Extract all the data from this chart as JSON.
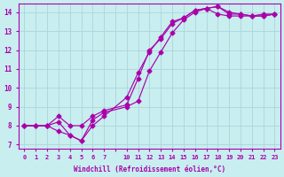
{
  "xlabel": "Windchill (Refroidissement éolien,°C)",
  "bg_color": "#c8eef0",
  "grid_color": "#b0d8dc",
  "line_color": "#aa00aa",
  "ylim": [
    6.8,
    14.45
  ],
  "yticks": [
    7,
    8,
    9,
    10,
    11,
    12,
    13,
    14
  ],
  "xtick_labels": [
    "0",
    "1",
    "2",
    "3",
    "4",
    "5",
    "6",
    "7",
    "",
    "10",
    "11",
    "12",
    "13",
    "14",
    "15",
    "16",
    "17",
    "18",
    "19",
    "20",
    "21",
    "22",
    "23"
  ],
  "n_xticks": 23,
  "line1_xi": [
    0,
    1,
    2,
    3,
    4,
    5,
    6,
    7,
    9,
    10,
    11,
    12,
    13,
    14,
    15,
    16,
    17,
    18,
    19,
    20,
    21,
    22
  ],
  "line1_y": [
    8.0,
    8.0,
    8.0,
    7.7,
    7.5,
    7.2,
    8.0,
    8.5,
    9.5,
    10.8,
    11.9,
    12.7,
    13.5,
    13.7,
    14.1,
    14.2,
    13.9,
    13.8,
    13.8,
    13.8,
    13.9,
    13.9
  ],
  "line2_xi": [
    0,
    1,
    2,
    3,
    4,
    5,
    6,
    7,
    9,
    10,
    11,
    12,
    13,
    14,
    15,
    16,
    17,
    18,
    19,
    20,
    21,
    22
  ],
  "line2_y": [
    8.0,
    8.0,
    8.0,
    8.2,
    7.5,
    7.2,
    8.3,
    8.7,
    9.0,
    9.3,
    10.9,
    11.9,
    12.9,
    13.6,
    14.0,
    14.2,
    14.3,
    13.9,
    13.9,
    13.8,
    13.8,
    13.9
  ],
  "line3_xi": [
    0,
    2,
    3,
    4,
    5,
    6,
    7,
    9,
    10,
    11,
    12,
    13,
    14,
    15,
    16,
    17,
    18,
    19,
    20,
    21,
    22
  ],
  "line3_y": [
    8.0,
    8.0,
    8.5,
    8.0,
    8.0,
    8.5,
    8.8,
    9.1,
    10.5,
    12.0,
    12.6,
    13.4,
    13.7,
    14.1,
    14.2,
    14.3,
    14.0,
    13.9,
    13.8,
    13.8,
    13.9
  ]
}
